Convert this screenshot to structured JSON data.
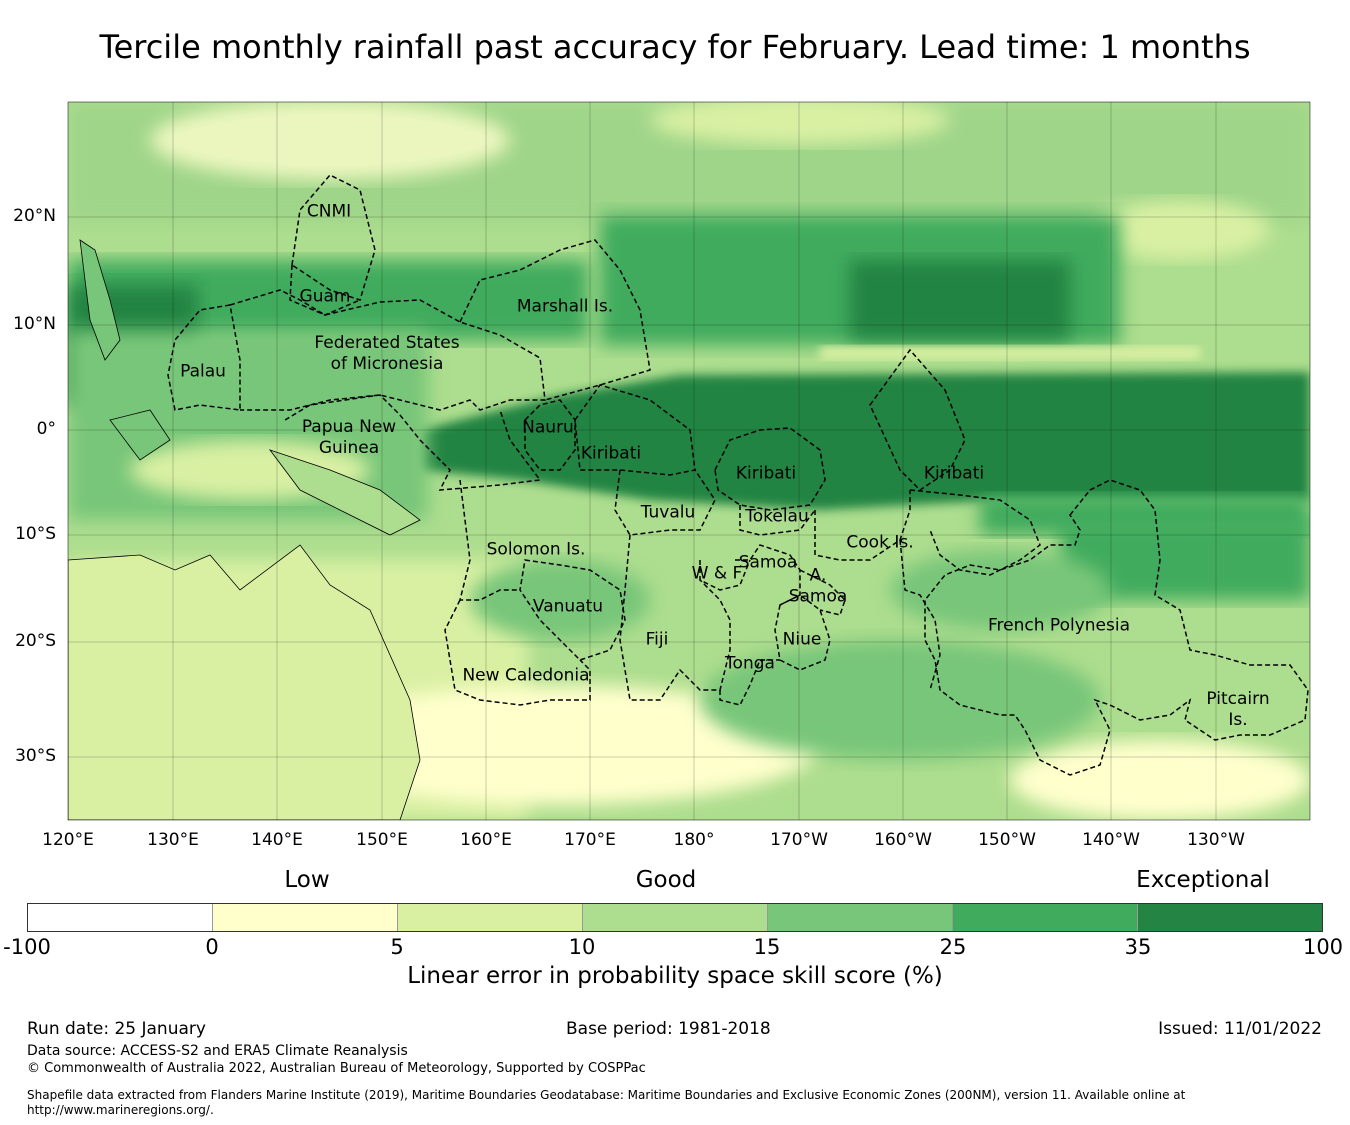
{
  "title": "Tercile monthly rainfall past accuracy for February. Lead time: 1 months",
  "map": {
    "lat_ticks": [
      "20°N",
      "10°N",
      "0°",
      "10°S",
      "20°S",
      "30°S"
    ],
    "lon_ticks": [
      "120°E",
      "130°E",
      "140°E",
      "150°E",
      "160°E",
      "170°E",
      "180°",
      "170°W",
      "160°W",
      "150°W",
      "140°W",
      "130°W"
    ],
    "regions": [
      "CNMI",
      "Guam",
      "Marshall Is.",
      "Palau",
      "Federated States\nof Micronesia",
      "Papua New\nGuinea",
      "Nauru",
      "Kiribati",
      "Kiribati",
      "Kiribati",
      "Tuvalu",
      "Tokelau",
      "Solomon Is.",
      "Samoa",
      "W & F",
      "A.",
      "Samoa",
      "Cook Is.",
      "Vanuatu",
      "Fiji",
      "Niue",
      "Tonga",
      "French Polynesia",
      "New Caledonia",
      "Pitcairn\nIs."
    ]
  },
  "legend": {
    "categories": [
      "Low",
      "Good",
      "Exceptional"
    ],
    "colors": [
      "#ffffff",
      "#ffffcc",
      "#d9f0a3",
      "#addd8e",
      "#78c679",
      "#41ab5d",
      "#238443"
    ],
    "ticks": [
      "-100",
      "0",
      "5",
      "10",
      "15",
      "25",
      "35",
      "100"
    ],
    "label": "Linear error in probability space skill score (%)"
  },
  "footer": {
    "run_date": "Run date: 25 January",
    "base_period": "Base period: 1981-2018",
    "issued": "Issued: 11/01/2022",
    "data_source": "Data source: ACCESS-S2 and ERA5 Climate Reanalysis",
    "copyright": "© Commonwealth of Australia 2022, Australian Bureau of Meteorology, Supported by COSPPac",
    "shapefile": "Shapefile data extracted from Flanders Marine Institute (2019), Maritime Boundaries Geodatabase: Maritime Boundaries and Exclusive Economic Zones (200NM), version 11. Available online at",
    "url": "http://www.marineregions.org/."
  }
}
